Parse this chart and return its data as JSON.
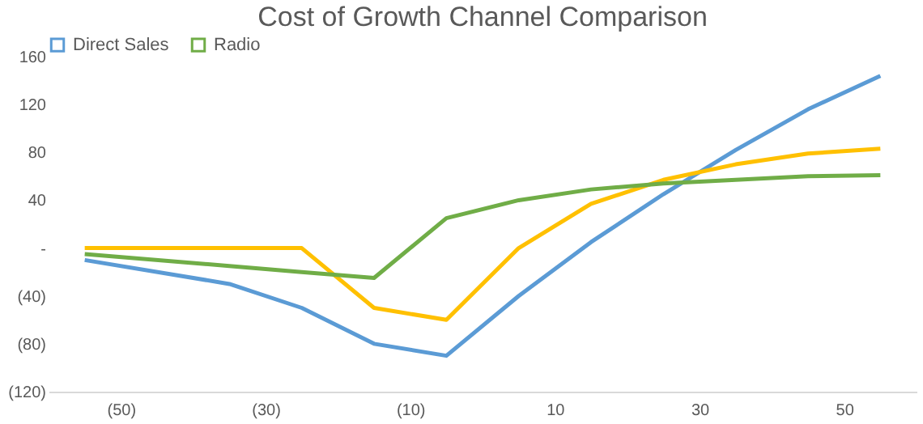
{
  "chart_data": {
    "type": "line",
    "title": "Cost of Growth Channel Comparison",
    "x": [
      -55,
      -35,
      -25,
      -15,
      -5,
      5,
      15,
      25,
      35,
      45,
      55
    ],
    "xlim": [
      -60,
      60
    ],
    "xticks": [
      {
        "value": -50,
        "label": "(50)"
      },
      {
        "value": -30,
        "label": "(30)"
      },
      {
        "value": -10,
        "label": "(10)"
      },
      10,
      30,
      50
    ],
    "ylim": [
      -120,
      160
    ],
    "yticks": [
      {
        "value": -120,
        "label": "(120)"
      },
      {
        "value": -80,
        "label": "(80)"
      },
      {
        "value": -40,
        "label": "(40)"
      },
      {
        "value": 0,
        "label": "-"
      },
      40,
      80,
      120,
      160
    ],
    "series": [
      {
        "name": "Direct Sales",
        "color": "#5b9bd5",
        "values": [
          -10,
          -30,
          -50,
          -80,
          -90,
          -40,
          5,
          45,
          82,
          116,
          144
        ]
      },
      {
        "color": "#ffc000",
        "values": [
          0,
          0,
          0,
          -50,
          -60,
          0,
          37,
          57,
          70,
          79,
          83
        ]
      },
      {
        "name": "Radio",
        "color": "#70ad47",
        "values": [
          -5,
          -15,
          -20,
          -25,
          25,
          40,
          49,
          54,
          57,
          60,
          61
        ]
      }
    ],
    "legend": "top",
    "grid": false,
    "marker": "none",
    "line_style": "solid"
  }
}
